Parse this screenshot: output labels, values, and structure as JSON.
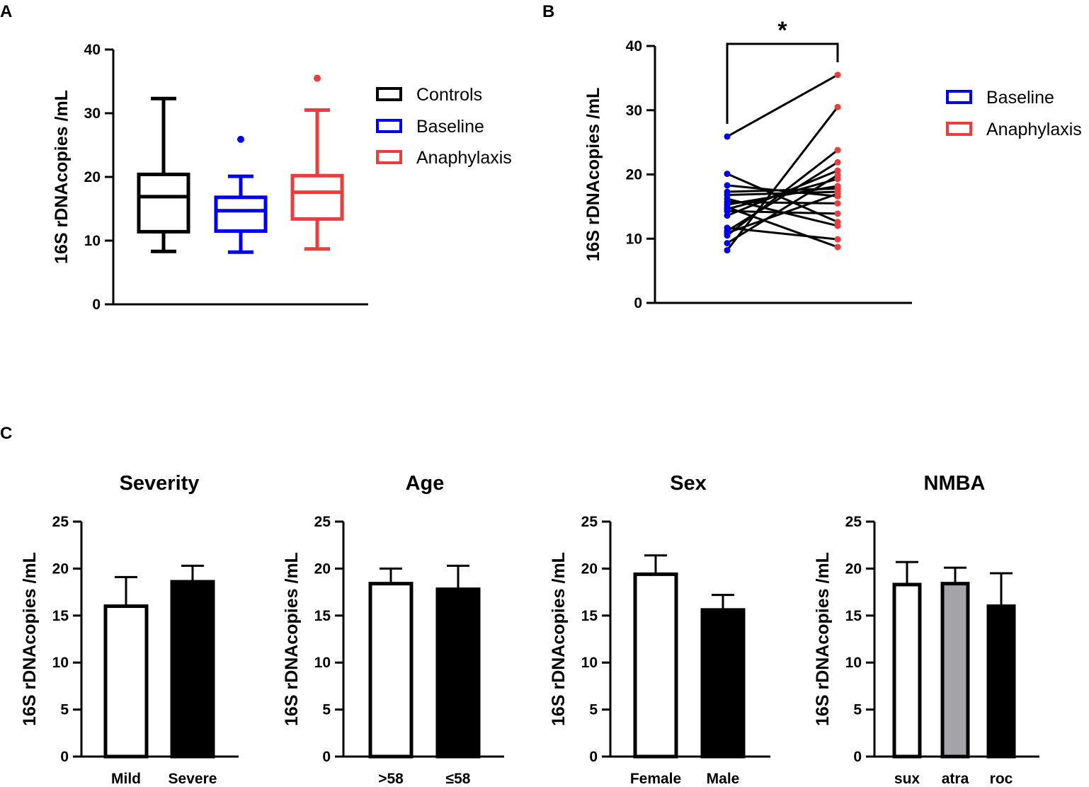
{
  "colors": {
    "black": "#000000",
    "blue": "#0000ee",
    "red": "#ee3b3b",
    "gray": "#a3a3a8",
    "white": "#ffffff"
  },
  "panels": {
    "a": "A",
    "b": "B",
    "c": "C"
  },
  "chart_data": [
    {
      "id": "A",
      "type": "box",
      "ylabel": "16S rDNAcopies /mL",
      "ylim": [
        0,
        40
      ],
      "yticks": [
        0,
        10,
        20,
        30,
        40
      ],
      "series": [
        {
          "name": "Controls",
          "color": "#000000",
          "whisker_low": 8.3,
          "q1": 11.4,
          "median": 16.9,
          "q3": 20.4,
          "whisker_high": 32.3,
          "outliers": []
        },
        {
          "name": "Baseline",
          "color": "#0000ee",
          "whisker_low": 8.2,
          "q1": 11.5,
          "median": 14.7,
          "q3": 16.8,
          "whisker_high": 20.1,
          "outliers": [
            25.9
          ]
        },
        {
          "name": "Anaphylaxis",
          "color": "#ee3b3b",
          "whisker_low": 8.7,
          "q1": 13.4,
          "median": 17.6,
          "q3": 20.2,
          "whisker_high": 30.5,
          "outliers": [
            35.5
          ]
        }
      ],
      "legend": [
        "Controls",
        "Baseline",
        "Anaphylaxis"
      ]
    },
    {
      "id": "B",
      "type": "paired-dot",
      "ylabel": "16S rDNAcopies /mL",
      "ylim": [
        0,
        40
      ],
      "yticks": [
        0,
        10,
        20,
        30,
        40
      ],
      "legend": [
        "Baseline",
        "Anaphylaxis"
      ],
      "significance": "*",
      "pairs": [
        [
          25.9,
          35.5
        ],
        [
          8.2,
          30.5
        ],
        [
          10.5,
          23.8
        ],
        [
          11.2,
          21.9
        ],
        [
          13.6,
          20.6
        ],
        [
          14.6,
          19.3
        ],
        [
          9.3,
          19.9
        ],
        [
          15.3,
          18.2
        ],
        [
          16.8,
          17.3
        ],
        [
          17.3,
          17.8
        ],
        [
          18.3,
          16.6
        ],
        [
          20.1,
          12.6
        ],
        [
          16.2,
          12.0
        ],
        [
          14.3,
          13.9
        ],
        [
          15.7,
          15.5
        ],
        [
          11.7,
          9.9
        ],
        [
          14.9,
          8.7
        ],
        [
          10.9,
          17.0
        ]
      ]
    },
    {
      "id": "C1",
      "type": "bar",
      "title": "Severity",
      "ylabel": "16S rDNAcopies /mL",
      "ylim": [
        0,
        25
      ],
      "yticks": [
        0,
        5,
        10,
        15,
        20,
        25
      ],
      "categories": [
        "Mild",
        "Severe"
      ],
      "values": [
        16.0,
        18.6
      ],
      "errors": [
        3.1,
        1.7
      ],
      "fills": [
        "#ffffff",
        "#000000"
      ]
    },
    {
      "id": "C2",
      "type": "bar",
      "title": "Age",
      "ylabel": "16S rDNAcopies /mL",
      "ylim": [
        0,
        25
      ],
      "yticks": [
        0,
        5,
        10,
        15,
        20,
        25
      ],
      "categories": [
        ">58",
        "≤58"
      ],
      "values": [
        18.4,
        17.8
      ],
      "errors": [
        1.6,
        2.5
      ],
      "fills": [
        "#ffffff",
        "#000000"
      ]
    },
    {
      "id": "C3",
      "type": "bar",
      "title": "Sex",
      "ylabel": "16S rDNAcopies /mL",
      "ylim": [
        0,
        25
      ],
      "yticks": [
        0,
        5,
        10,
        15,
        20,
        25
      ],
      "categories": [
        "Female",
        "Male"
      ],
      "values": [
        19.4,
        15.6
      ],
      "errors": [
        2.0,
        1.6
      ],
      "fills": [
        "#ffffff",
        "#000000"
      ]
    },
    {
      "id": "C4",
      "type": "bar",
      "title": "NMBA",
      "ylabel": "16S rDNAcopies /mL",
      "ylim": [
        0,
        25
      ],
      "yticks": [
        0,
        5,
        10,
        15,
        20,
        25
      ],
      "categories": [
        "sux",
        "atra",
        "roc"
      ],
      "values": [
        18.3,
        18.4,
        16.0
      ],
      "errors": [
        2.4,
        1.7,
        3.5
      ],
      "fills": [
        "#ffffff",
        "#a3a3a8",
        "#000000"
      ]
    }
  ]
}
